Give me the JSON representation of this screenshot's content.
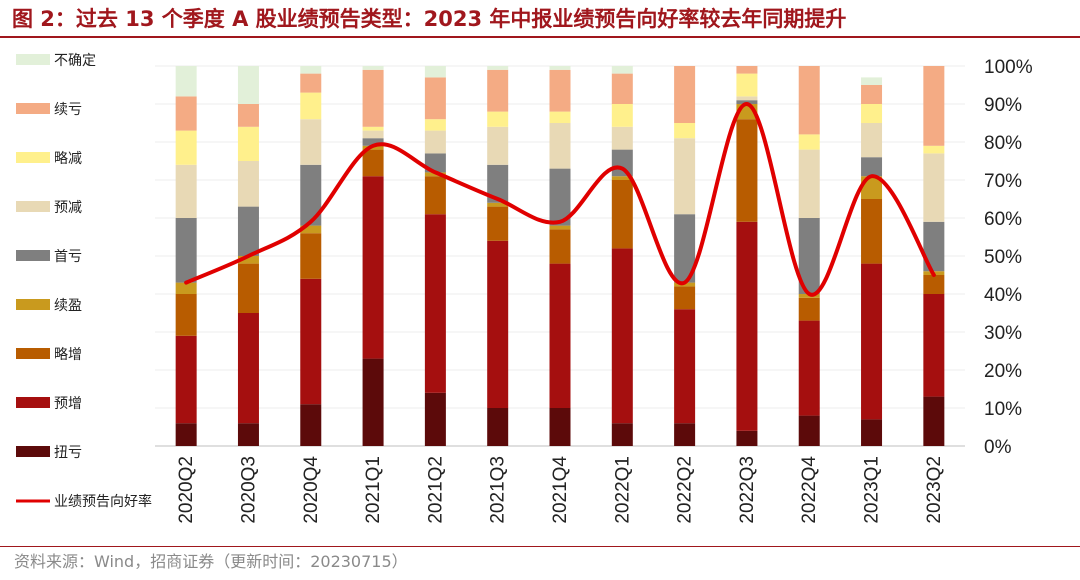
{
  "title": "图 2：过去 13 个季度 A 股业绩预告类型：2023 年中报业绩预告向好率较去年同期提升",
  "source": "资料来源：Wind，招商证券（更新时间：20230715）",
  "colors": {
    "title": "#a0171d",
    "扭亏": "#5c0a0a",
    "预增": "#a50f0f",
    "略增": "#b85c00",
    "续盈": "#c99a1e",
    "首亏": "#7f7f7f",
    "预减": "#e8d9b5",
    "略减": "#fff08c",
    "续亏": "#f4ab84",
    "不确定": "#e2f0d9",
    "line": "#e00000"
  },
  "chart_data": {
    "type": "bar",
    "stacked": true,
    "categories": [
      "2020Q2",
      "2020Q3",
      "2020Q4",
      "2021Q1",
      "2021Q2",
      "2021Q3",
      "2021Q4",
      "2022Q1",
      "2022Q2",
      "2022Q3",
      "2022Q4",
      "2023Q1",
      "2023Q2"
    ],
    "y_ticks": [
      "0%",
      "10%",
      "20%",
      "30%",
      "40%",
      "50%",
      "60%",
      "70%",
      "80%",
      "90%",
      "100%"
    ],
    "ylim": [
      0,
      100
    ],
    "y_axis_side": "right",
    "legend_position": "left",
    "series": [
      {
        "name": "扭亏",
        "color_key": "扭亏",
        "values": [
          6,
          6,
          11,
          23,
          14,
          10,
          10,
          6,
          6,
          4,
          8,
          7,
          13
        ]
      },
      {
        "name": "预增",
        "color_key": "预增",
        "values": [
          23,
          29,
          33,
          48,
          47,
          44,
          38,
          46,
          30,
          55,
          25,
          41,
          27
        ]
      },
      {
        "name": "略增",
        "color_key": "略增",
        "values": [
          11,
          13,
          12,
          7,
          10,
          9,
          9,
          18,
          6,
          27,
          6,
          17,
          5
        ]
      },
      {
        "name": "续盈",
        "color_key": "续盈",
        "values": [
          3,
          2,
          2,
          1,
          1,
          1,
          1,
          1,
          1,
          4,
          1,
          6,
          1
        ]
      },
      {
        "name": "首亏",
        "color_key": "首亏",
        "values": [
          17,
          13,
          16,
          2,
          5,
          10,
          15,
          7,
          18,
          1,
          20,
          5,
          13
        ]
      },
      {
        "name": "预减",
        "color_key": "预减",
        "values": [
          14,
          12,
          12,
          2,
          6,
          10,
          12,
          6,
          20,
          1,
          18,
          9,
          18
        ]
      },
      {
        "name": "略减",
        "color_key": "略减",
        "values": [
          9,
          9,
          7,
          1,
          3,
          4,
          3,
          6,
          4,
          6,
          4,
          5,
          2
        ]
      },
      {
        "name": "续亏",
        "color_key": "续亏",
        "values": [
          9,
          6,
          5,
          15,
          11,
          11,
          11,
          8,
          15,
          2,
          18,
          5,
          21
        ]
      },
      {
        "name": "续亏",
        "color_key": "续亏",
        "show_in_legend": false,
        "values": [
          0,
          0,
          0,
          0,
          0,
          0,
          0,
          0,
          0,
          0,
          0,
          0,
          0
        ]
      },
      {
        "name": "不确定",
        "color_key": "不确定",
        "values": [
          8,
          10,
          2,
          1,
          3,
          1,
          1,
          2,
          0,
          0,
          0,
          2,
          0
        ]
      }
    ],
    "line": {
      "name": "业绩预告向好率",
      "color_key": "line",
      "values": [
        43,
        50,
        59,
        79,
        72,
        65,
        59,
        73,
        43,
        90,
        40,
        71,
        45
      ]
    }
  }
}
